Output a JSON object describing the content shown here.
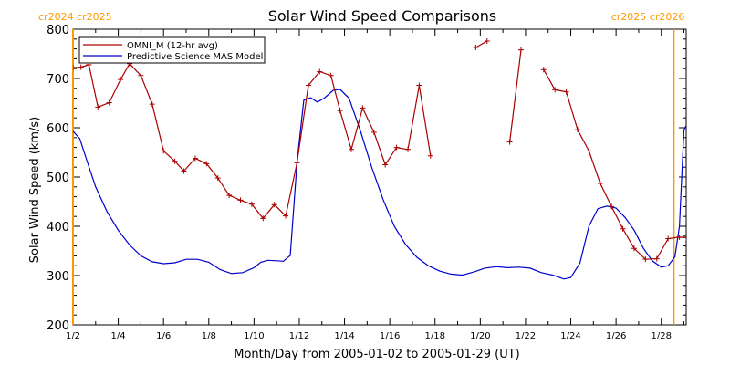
{
  "chart_data": {
    "type": "line",
    "title": "Solar Wind Speed Comparisons",
    "xlabel": "Month/Day from 2005-01-02 to 2005-01-29 (UT)",
    "ylabel": "Solar Wind Speed (km/s)",
    "xlim": [
      0,
      27.1
    ],
    "ylim": [
      200,
      800
    ],
    "x_ticks": [
      {
        "x": 0,
        "label": "1/2"
      },
      {
        "x": 2,
        "label": "1/4"
      },
      {
        "x": 4,
        "label": "1/6"
      },
      {
        "x": 6,
        "label": "1/8"
      },
      {
        "x": 8,
        "label": "1/10"
      },
      {
        "x": 10,
        "label": "1/12"
      },
      {
        "x": 12,
        "label": "1/14"
      },
      {
        "x": 14,
        "label": "1/16"
      },
      {
        "x": 16,
        "label": "1/18"
      },
      {
        "x": 18,
        "label": "1/20"
      },
      {
        "x": 20,
        "label": "1/22"
      },
      {
        "x": 22,
        "label": "1/24"
      },
      {
        "x": 24,
        "label": "1/26"
      },
      {
        "x": 26,
        "label": "1/28"
      }
    ],
    "y_ticks": [
      200,
      300,
      400,
      500,
      600,
      700,
      800
    ],
    "legend": {
      "position": "top-left"
    },
    "rotation_markers": [
      {
        "x": 0,
        "label": "cr2024 cr2025",
        "color": "#ff9900",
        "align": "left"
      },
      {
        "x": 26.55,
        "label": "cr2025 cr2026",
        "color": "#ff9900",
        "align": "right"
      }
    ],
    "series": [
      {
        "name": "OMNI_M (12-hr avg)",
        "color": "#aa0000",
        "marker": "plus",
        "segments": [
          [
            [
              0,
              722
            ],
            [
              0.35,
              723
            ],
            [
              0.7,
              728
            ],
            [
              1.1,
              642
            ],
            [
              1.6,
              651
            ],
            [
              2.1,
              698
            ],
            [
              2.5,
              730
            ],
            [
              3.0,
              706
            ],
            [
              3.5,
              648
            ],
            [
              4.0,
              553
            ],
            [
              4.5,
              532
            ],
            [
              4.9,
              512
            ],
            [
              5.4,
              538
            ],
            [
              5.9,
              527
            ],
            [
              6.4,
              498
            ],
            [
              6.9,
              463
            ],
            [
              7.4,
              453
            ],
            [
              7.9,
              445
            ],
            [
              8.4,
              416
            ],
            [
              8.9,
              444
            ],
            [
              9.4,
              421
            ],
            [
              9.9,
              529
            ],
            [
              10.4,
              686
            ],
            [
              10.9,
              714
            ],
            [
              11.4,
              706
            ],
            [
              11.8,
              635
            ],
            [
              12.3,
              556
            ],
            [
              12.8,
              640
            ],
            [
              13.3,
              591
            ],
            [
              13.8,
              525
            ],
            [
              14.3,
              560
            ],
            [
              14.8,
              556
            ],
            [
              15.3,
              686
            ],
            [
              15.8,
              543
            ]
          ],
          [
            [
              17.8,
              763
            ],
            [
              18.3,
              776
            ]
          ],
          [
            [
              19.3,
              571
            ],
            [
              19.8,
              758
            ]
          ],
          [
            [
              20.8,
              718
            ],
            [
              21.3,
              677
            ],
            [
              21.8,
              673
            ],
            [
              22.3,
              596
            ],
            [
              22.8,
              553
            ],
            [
              23.3,
              487
            ],
            [
              23.8,
              440
            ],
            [
              24.3,
              395
            ],
            [
              24.8,
              355
            ],
            [
              25.3,
              333
            ],
            [
              25.8,
              334
            ],
            [
              26.3,
              375
            ],
            [
              26.8,
              378
            ],
            [
              27.1,
              377
            ]
          ]
        ]
      },
      {
        "name": "Predictive Science MAS Model",
        "color": "#0000cc",
        "marker": "none",
        "segments": [
          [
            [
              0,
              593
            ],
            [
              0.3,
              578
            ],
            [
              0.6,
              535
            ],
            [
              1.0,
              480
            ],
            [
              1.5,
              430
            ],
            [
              2.0,
              392
            ],
            [
              2.5,
              362
            ],
            [
              3.0,
              340
            ],
            [
              3.5,
              328
            ],
            [
              4.0,
              324
            ],
            [
              4.5,
              326
            ],
            [
              5.0,
              333
            ],
            [
              5.5,
              333
            ],
            [
              6.0,
              327
            ],
            [
              6.5,
              312
            ],
            [
              7.0,
              304
            ],
            [
              7.5,
              306
            ],
            [
              8.0,
              316
            ],
            [
              8.3,
              327
            ],
            [
              8.6,
              331
            ],
            [
              9.0,
              330
            ],
            [
              9.3,
              329
            ],
            [
              9.6,
              341
            ],
            [
              9.9,
              530
            ],
            [
              10.2,
              656
            ],
            [
              10.5,
              661
            ],
            [
              10.8,
              652
            ],
            [
              11.1,
              660
            ],
            [
              11.5,
              676
            ],
            [
              11.8,
              678
            ],
            [
              12.2,
              660
            ],
            [
              12.7,
              594
            ],
            [
              13.2,
              520
            ],
            [
              13.7,
              455
            ],
            [
              14.2,
              400
            ],
            [
              14.7,
              363
            ],
            [
              15.2,
              337
            ],
            [
              15.7,
              320
            ],
            [
              16.2,
              309
            ],
            [
              16.7,
              303
            ],
            [
              17.2,
              301
            ],
            [
              17.7,
              307
            ],
            [
              18.2,
              315
            ],
            [
              18.7,
              318
            ],
            [
              19.2,
              316
            ],
            [
              19.7,
              317
            ],
            [
              20.2,
              315
            ],
            [
              20.7,
              306
            ],
            [
              21.2,
              301
            ],
            [
              21.7,
              293
            ],
            [
              22.0,
              296
            ],
            [
              22.4,
              325
            ],
            [
              22.8,
              400
            ],
            [
              23.2,
              436
            ],
            [
              23.6,
              441
            ],
            [
              24.0,
              437
            ],
            [
              24.4,
              418
            ],
            [
              24.8,
              392
            ],
            [
              25.2,
              356
            ],
            [
              25.6,
              330
            ],
            [
              26.0,
              317
            ],
            [
              26.3,
              320
            ],
            [
              26.6,
              338
            ],
            [
              26.8,
              400
            ],
            [
              27.0,
              595
            ],
            [
              27.3,
              624
            ]
          ]
        ]
      }
    ]
  }
}
